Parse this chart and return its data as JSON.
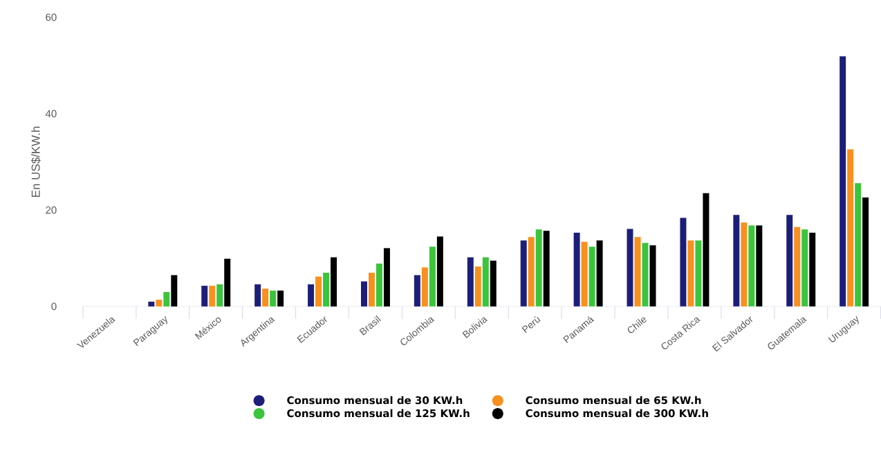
{
  "chart_data": {
    "type": "bar",
    "ylabel": "En US$/KW.h",
    "categories": [
      "Venezuela",
      "Paraguay",
      "México",
      "Argentina",
      "Ecuador",
      "Brasil",
      "Colombia",
      "Bolivia",
      "Perú",
      "Panamá",
      "Chile",
      "Costa Rica",
      "El Salvador",
      "Guatemala",
      "Uruguay"
    ],
    "series": [
      {
        "name": "Consumo mensual de 30 KW.h",
        "color": "#1c1f78",
        "values": [
          null,
          1.0,
          4.3,
          4.6,
          4.6,
          5.2,
          6.5,
          10.2,
          13.7,
          15.3,
          16.1,
          18.4,
          19.0,
          19.0,
          51.9
        ]
      },
      {
        "name": "Consumo mensual de 65 KW.h",
        "color": "#f7901e",
        "values": [
          null,
          1.4,
          4.3,
          3.7,
          6.2,
          7.0,
          8.1,
          8.3,
          14.4,
          13.4,
          14.4,
          13.7,
          17.4,
          16.5,
          32.6
        ]
      },
      {
        "name": "Consumo mensual de 125 KW.h",
        "color": "#3cc43c",
        "values": [
          null,
          3.0,
          4.6,
          3.3,
          7.0,
          8.9,
          12.4,
          10.2,
          16.0,
          12.4,
          13.2,
          13.7,
          16.8,
          16.0,
          25.6
        ]
      },
      {
        "name": "Consumo mensual de 300 KW.h",
        "color": "#000000",
        "values": [
          null,
          6.5,
          9.9,
          3.3,
          10.2,
          12.1,
          14.5,
          9.5,
          15.7,
          13.7,
          12.7,
          23.5,
          16.8,
          15.3,
          22.6
        ]
      }
    ],
    "ylim": [
      0,
      60
    ],
    "yticks": [
      0,
      20,
      40,
      60
    ],
    "grid": false,
    "legend": "bottom"
  }
}
